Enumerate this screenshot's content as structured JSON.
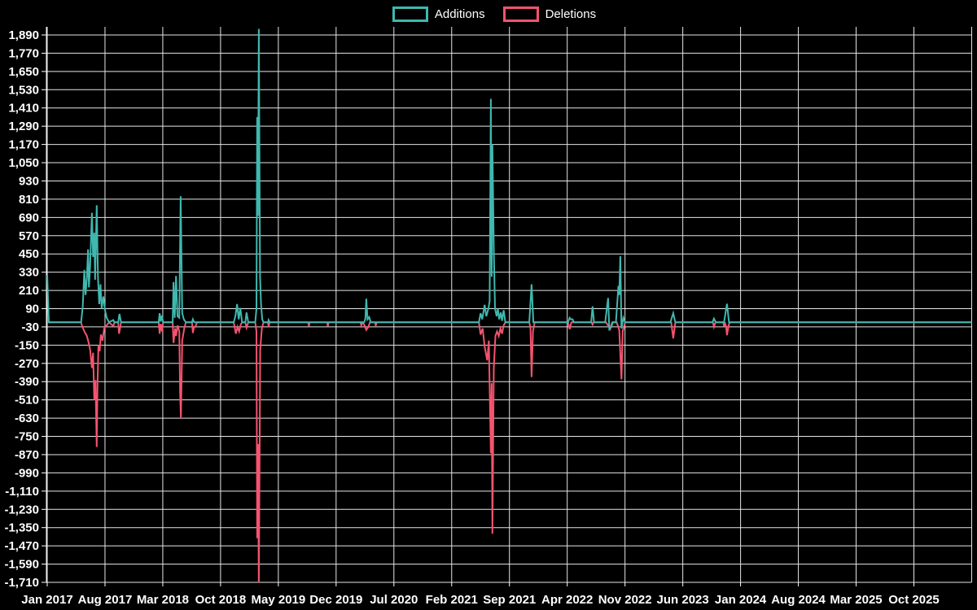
{
  "legend": {
    "items": [
      {
        "label": "Additions",
        "color": "#3fb8af"
      },
      {
        "label": "Deletions",
        "color": "#f4536f"
      }
    ]
  },
  "colors": {
    "background": "#000000",
    "grid": "#e6e6e6",
    "text": "#ffffff",
    "additions": "#3fb8af",
    "deletions": "#f4536f"
  },
  "chart_data": {
    "type": "line",
    "title": "",
    "xlabel": "",
    "ylabel": "",
    "legend_position": "top-center",
    "grid": true,
    "background": "#000000",
    "y_axis": {
      "max": 1890,
      "min": -1710,
      "step": 120
    },
    "y_ticks": [
      "1,890",
      "1,770",
      "1,650",
      "1,530",
      "1,410",
      "1,290",
      "1,170",
      "1,050",
      "930",
      "810",
      "690",
      "570",
      "450",
      "330",
      "210",
      "90",
      "-30",
      "-150",
      "-270",
      "-390",
      "-510",
      "-630",
      "-750",
      "-870",
      "-990",
      "-1,110",
      "-1,230",
      "-1,350",
      "-1,470",
      "-1,590",
      "-1,710"
    ],
    "x_ticks": [
      "Jan 2017",
      "Aug 2017",
      "Mar 2018",
      "Oct 2018",
      "May 2019",
      "Dec 2019",
      "Jul 2020",
      "Feb 2021",
      "Sep 2021",
      "Apr 2022",
      "Nov 2022",
      "Jun 2023",
      "Jan 2024",
      "Aug 2024",
      "Mar 2025",
      "Oct 2025"
    ],
    "x_axis": {
      "unit": "months since Jan 2017",
      "months_per_tick": 7,
      "range_months": 112
    },
    "series": [
      {
        "name": "Additions",
        "color": "#3fb8af",
        "points": [
          [
            0,
            310
          ],
          [
            0.2,
            0
          ],
          [
            4.1,
            0
          ],
          [
            4.3,
            100
          ],
          [
            4.5,
            345
          ],
          [
            4.65,
            180
          ],
          [
            4.8,
            290
          ],
          [
            4.95,
            480
          ],
          [
            5.05,
            230
          ],
          [
            5.2,
            370
          ],
          [
            5.42,
            720
          ],
          [
            5.55,
            430
          ],
          [
            5.7,
            590
          ],
          [
            5.8,
            280
          ],
          [
            6.0,
            770
          ],
          [
            6.15,
            300
          ],
          [
            6.3,
            120
          ],
          [
            6.45,
            250
          ],
          [
            6.6,
            90
          ],
          [
            6.8,
            170
          ],
          [
            7.0,
            80
          ],
          [
            7.2,
            30
          ],
          [
            7.5,
            0
          ],
          [
            8.0,
            15
          ],
          [
            8.15,
            0
          ],
          [
            8.6,
            0
          ],
          [
            8.75,
            55
          ],
          [
            8.95,
            0
          ],
          [
            13.5,
            0
          ],
          [
            13.62,
            60
          ],
          [
            13.75,
            5
          ],
          [
            13.9,
            45
          ],
          [
            14.05,
            0
          ],
          [
            15.2,
            0
          ],
          [
            15.3,
            265
          ],
          [
            15.45,
            30
          ],
          [
            15.6,
            305
          ],
          [
            15.78,
            40
          ],
          [
            16.0,
            30
          ],
          [
            16.17,
            830
          ],
          [
            16.35,
            60
          ],
          [
            16.55,
            20
          ],
          [
            16.8,
            0
          ],
          [
            17.55,
            0
          ],
          [
            17.65,
            20
          ],
          [
            17.8,
            0
          ],
          [
            22.6,
            0
          ],
          [
            22.8,
            40
          ],
          [
            23.0,
            120
          ],
          [
            23.2,
            20
          ],
          [
            23.4,
            95
          ],
          [
            23.6,
            0
          ],
          [
            24.0,
            0
          ],
          [
            24.15,
            65
          ],
          [
            24.35,
            0
          ],
          [
            25.2,
            0
          ],
          [
            25.35,
            90
          ],
          [
            25.44,
            1350
          ],
          [
            25.54,
            700
          ],
          [
            25.64,
            1930
          ],
          [
            25.78,
            300
          ],
          [
            25.9,
            120
          ],
          [
            26.05,
            20
          ],
          [
            26.2,
            0
          ],
          [
            26.75,
            0
          ],
          [
            26.82,
            15
          ],
          [
            26.95,
            0
          ],
          [
            38.4,
            0
          ],
          [
            38.55,
            25
          ],
          [
            38.66,
            155
          ],
          [
            38.8,
            20
          ],
          [
            39.0,
            35
          ],
          [
            39.2,
            0
          ],
          [
            52.3,
            0
          ],
          [
            52.5,
            60
          ],
          [
            52.7,
            20
          ],
          [
            53.0,
            115
          ],
          [
            53.2,
            40
          ],
          [
            53.45,
            90
          ],
          [
            53.6,
            140
          ],
          [
            53.75,
            1470
          ],
          [
            53.85,
            300
          ],
          [
            53.94,
            1170
          ],
          [
            54.1,
            480
          ],
          [
            54.25,
            90
          ],
          [
            54.45,
            40
          ],
          [
            54.6,
            90
          ],
          [
            54.75,
            20
          ],
          [
            54.95,
            65
          ],
          [
            55.1,
            10
          ],
          [
            55.3,
            80
          ],
          [
            55.5,
            0
          ],
          [
            58.4,
            0
          ],
          [
            58.68,
            250
          ],
          [
            58.9,
            0
          ],
          [
            63.1,
            0
          ],
          [
            63.3,
            30
          ],
          [
            63.45,
            20
          ],
          [
            63.65,
            20
          ],
          [
            63.8,
            0
          ],
          [
            65.9,
            0
          ],
          [
            66.07,
            105
          ],
          [
            66.25,
            0
          ],
          [
            67.6,
            0
          ],
          [
            67.95,
            160
          ],
          [
            68.1,
            -45
          ],
          [
            68.35,
            -30
          ],
          [
            68.5,
            0
          ],
          [
            68.9,
            0
          ],
          [
            69.2,
            240
          ],
          [
            69.3,
            180
          ],
          [
            69.43,
            435
          ],
          [
            69.57,
            -40
          ],
          [
            69.8,
            30
          ],
          [
            70.0,
            0
          ],
          [
            75.5,
            0
          ],
          [
            75.84,
            60
          ],
          [
            76.1,
            0
          ],
          [
            80.6,
            0
          ],
          [
            80.77,
            25
          ],
          [
            81.0,
            0
          ],
          [
            82.0,
            0
          ],
          [
            82.35,
            122
          ],
          [
            82.6,
            0
          ],
          [
            112.1,
            0
          ]
        ]
      },
      {
        "name": "Deletions",
        "color": "#f4536f",
        "points": [
          [
            0,
            0
          ],
          [
            4.1,
            0
          ],
          [
            4.2,
            -20
          ],
          [
            4.5,
            -60
          ],
          [
            4.8,
            -90
          ],
          [
            5.0,
            -130
          ],
          [
            5.2,
            -180
          ],
          [
            5.42,
            -300
          ],
          [
            5.55,
            -200
          ],
          [
            5.7,
            -510
          ],
          [
            5.85,
            -380
          ],
          [
            6.0,
            -820
          ],
          [
            6.1,
            -400
          ],
          [
            6.2,
            -150
          ],
          [
            6.35,
            -190
          ],
          [
            6.5,
            -80
          ],
          [
            6.7,
            -120
          ],
          [
            6.9,
            -40
          ],
          [
            7.2,
            -20
          ],
          [
            7.5,
            0
          ],
          [
            8.0,
            -25
          ],
          [
            8.15,
            0
          ],
          [
            8.6,
            0
          ],
          [
            8.7,
            -75
          ],
          [
            8.95,
            0
          ],
          [
            13.5,
            0
          ],
          [
            13.62,
            -75
          ],
          [
            13.75,
            -10
          ],
          [
            13.9,
            -60
          ],
          [
            14.05,
            0
          ],
          [
            15.2,
            0
          ],
          [
            15.3,
            -135
          ],
          [
            15.5,
            -40
          ],
          [
            15.6,
            -90
          ],
          [
            15.8,
            -20
          ],
          [
            16.0,
            -60
          ],
          [
            16.1,
            -460
          ],
          [
            16.2,
            -630
          ],
          [
            16.35,
            -120
          ],
          [
            16.6,
            -40
          ],
          [
            16.8,
            0
          ],
          [
            17.55,
            0
          ],
          [
            17.65,
            -70
          ],
          [
            17.78,
            -30
          ],
          [
            17.95,
            -30
          ],
          [
            18.15,
            0
          ],
          [
            22.6,
            0
          ],
          [
            22.85,
            -75
          ],
          [
            23.05,
            -30
          ],
          [
            23.25,
            -60
          ],
          [
            23.45,
            -15
          ],
          [
            23.6,
            0
          ],
          [
            24.0,
            0
          ],
          [
            24.15,
            -35
          ],
          [
            24.35,
            0
          ],
          [
            25.2,
            0
          ],
          [
            25.35,
            -60
          ],
          [
            25.44,
            -1420
          ],
          [
            25.54,
            -800
          ],
          [
            25.64,
            -1750
          ],
          [
            25.8,
            -180
          ],
          [
            26.0,
            -40
          ],
          [
            26.2,
            0
          ],
          [
            26.75,
            0
          ],
          [
            26.82,
            -30
          ],
          [
            26.95,
            0
          ],
          [
            31.6,
            0
          ],
          [
            31.7,
            -25
          ],
          [
            31.8,
            0
          ],
          [
            33.9,
            0
          ],
          [
            34.0,
            -25
          ],
          [
            34.1,
            0
          ],
          [
            37.95,
            0
          ],
          [
            38.05,
            -20
          ],
          [
            38.15,
            0
          ],
          [
            38.4,
            -15
          ],
          [
            38.66,
            -50
          ],
          [
            38.9,
            -30
          ],
          [
            39.1,
            0
          ],
          [
            39.7,
            0
          ],
          [
            39.8,
            -20
          ],
          [
            39.95,
            0
          ],
          [
            52.3,
            0
          ],
          [
            52.5,
            -80
          ],
          [
            52.75,
            -40
          ],
          [
            53.0,
            -160
          ],
          [
            53.3,
            -250
          ],
          [
            53.5,
            -120
          ],
          [
            53.75,
            -860
          ],
          [
            53.85,
            -400
          ],
          [
            53.94,
            -1390
          ],
          [
            54.1,
            -300
          ],
          [
            54.3,
            -90
          ],
          [
            54.5,
            -60
          ],
          [
            54.7,
            -90
          ],
          [
            54.9,
            -40
          ],
          [
            55.1,
            -75
          ],
          [
            55.3,
            -20
          ],
          [
            55.5,
            0
          ],
          [
            58.4,
            0
          ],
          [
            58.55,
            -40
          ],
          [
            58.68,
            -360
          ],
          [
            58.85,
            -60
          ],
          [
            59.05,
            0
          ],
          [
            63.1,
            0
          ],
          [
            63.3,
            -45
          ],
          [
            63.5,
            0
          ],
          [
            65.95,
            0
          ],
          [
            66.07,
            -15
          ],
          [
            66.2,
            0
          ],
          [
            67.7,
            0
          ],
          [
            67.95,
            -20
          ],
          [
            68.2,
            -45
          ],
          [
            68.45,
            0
          ],
          [
            69.0,
            0
          ],
          [
            69.3,
            -50
          ],
          [
            69.57,
            -375
          ],
          [
            69.72,
            -60
          ],
          [
            70.0,
            0
          ],
          [
            75.6,
            0
          ],
          [
            75.84,
            -105
          ],
          [
            76.1,
            0
          ],
          [
            80.65,
            0
          ],
          [
            80.77,
            -30
          ],
          [
            80.95,
            0
          ],
          [
            81.9,
            0
          ],
          [
            82.0,
            -25
          ],
          [
            82.1,
            0
          ],
          [
            82.25,
            -30
          ],
          [
            82.35,
            -85
          ],
          [
            82.55,
            -20
          ],
          [
            82.7,
            0
          ],
          [
            112.1,
            0
          ]
        ]
      }
    ]
  }
}
